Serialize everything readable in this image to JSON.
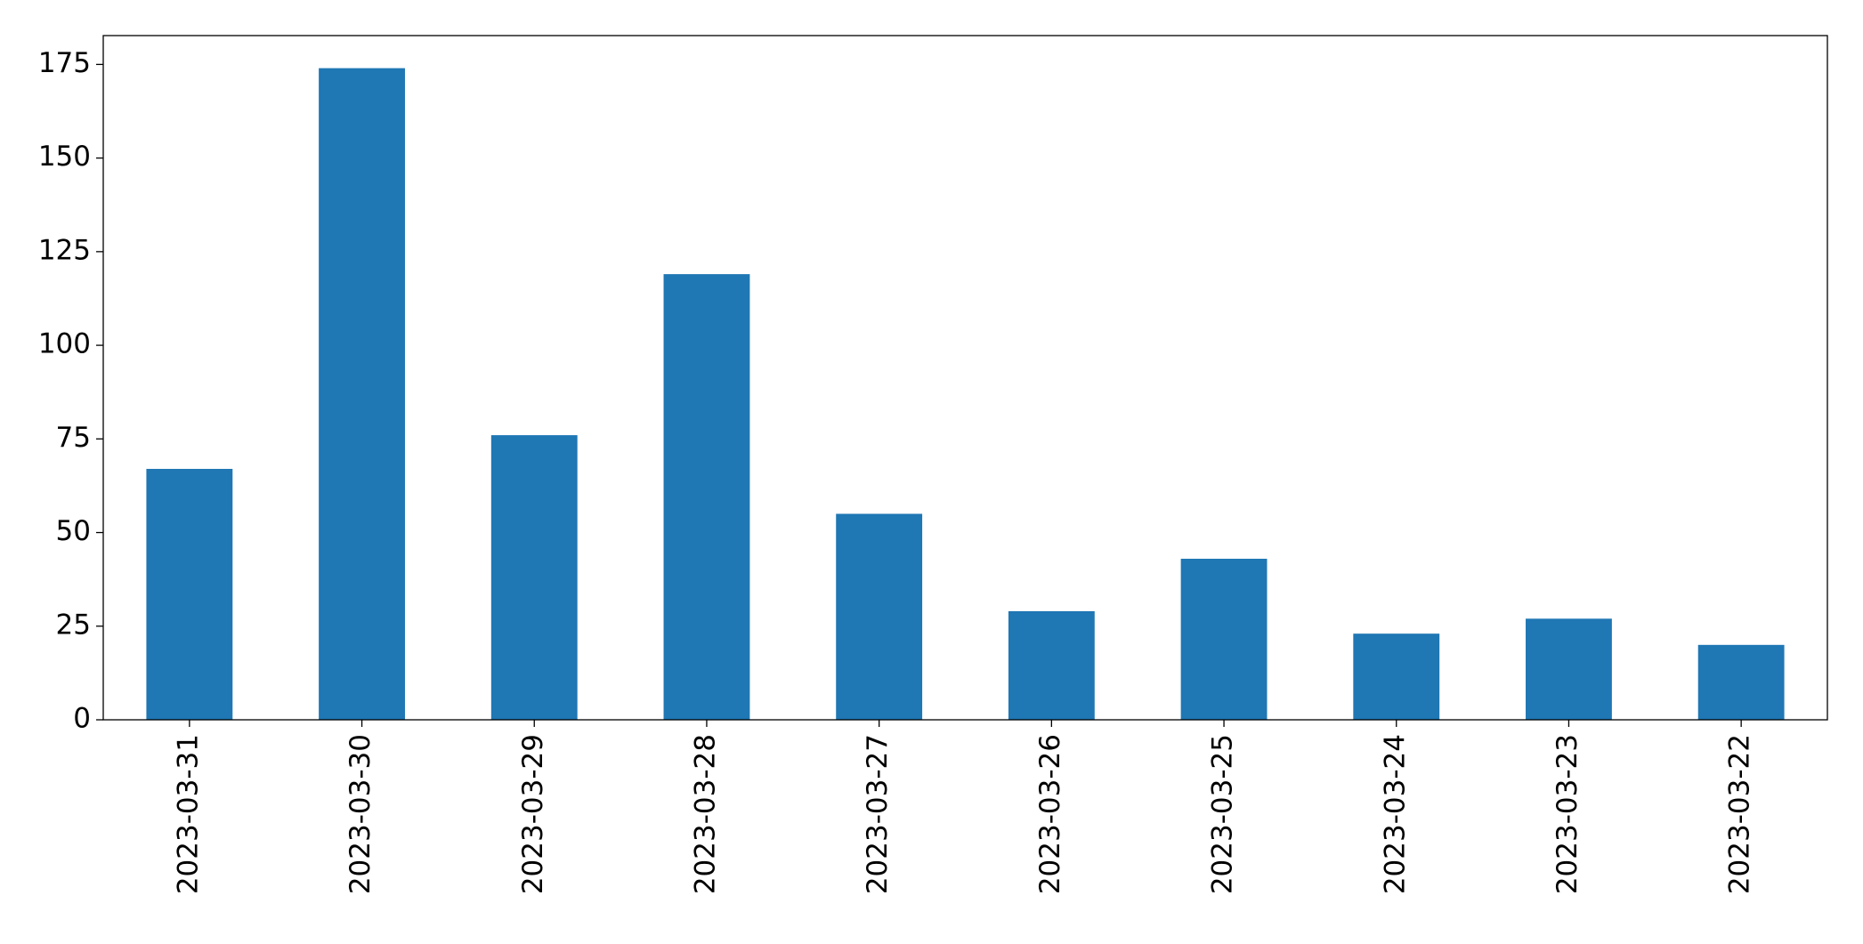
{
  "chart_data": {
    "type": "bar",
    "categories": [
      "2023-03-31",
      "2023-03-30",
      "2023-03-29",
      "2023-03-28",
      "2023-03-27",
      "2023-03-26",
      "2023-03-25",
      "2023-03-24",
      "2023-03-23",
      "2023-03-22"
    ],
    "values": [
      67,
      174,
      76,
      119,
      55,
      29,
      43,
      23,
      27,
      20
    ],
    "color": "#1f77b4",
    "ylim": [
      0,
      182.7
    ],
    "yticks": [
      0,
      25,
      50,
      75,
      100,
      125,
      150,
      175
    ],
    "grid": false
  }
}
